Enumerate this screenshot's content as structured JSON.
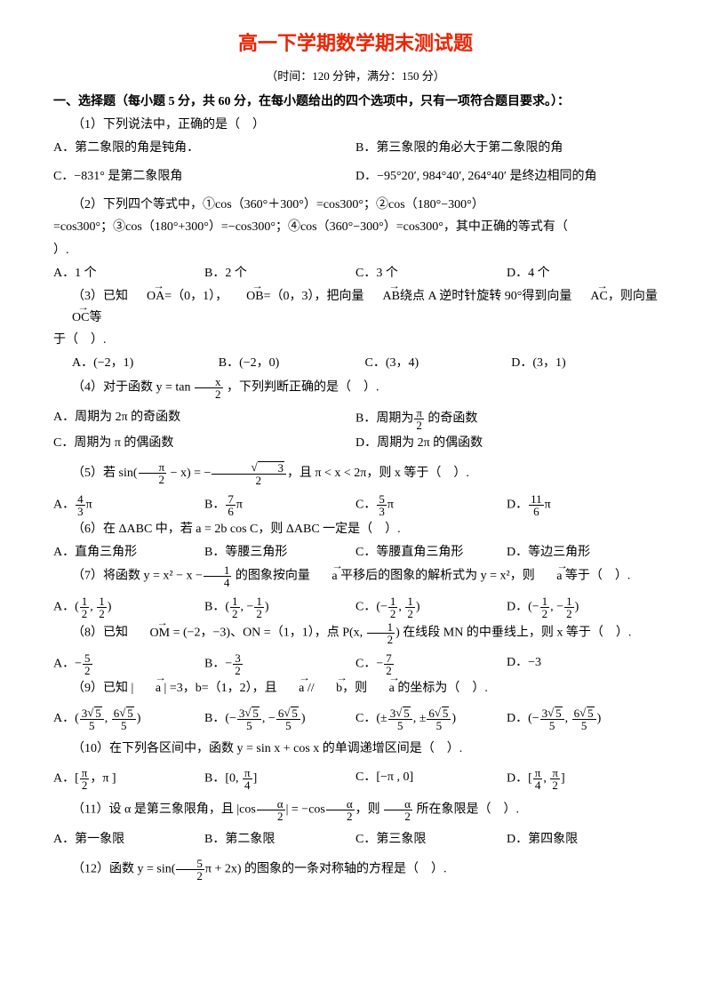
{
  "title": "高一下学期数学期末测试题",
  "subtitle": "（时间：120 分钟，满分：150 分）",
  "section1": "一、选择题（每小题 5 分，共 60 分，在每小题给出的四个选项中，只有一项符合题目要求。）：",
  "q1": {
    "stem": "（1）下列说法中，正确的是（　）",
    "A": "A．第二象限的角是钝角．",
    "B": "B．第三象限的角必大于第二象限的角",
    "C": "C．−831° 是第二象限角",
    "D": "D．−95°20′, 984°40′, 264°40′ 是终边相同的角"
  },
  "q2": {
    "line1": "（2）下列四个等式中，①cos（360°＋300°）=cos300°；②cos（180°−300°）",
    "line2": "=cos300°；③cos（180°+300°）=−cos300°；④cos（360°−300°）=cos300°，其中正确的等式有（",
    "line3": "）.",
    "A": "A．1 个",
    "B": "B．2 个",
    "C": "C．3 个",
    "D": "D．4 个"
  },
  "q3": {
    "p1a": "（3）已知",
    "p1b": "OA",
    "p1c": "=（0，1），",
    "p1d": "OB",
    "p1e": "=（0，3），把向量",
    "p1f": "AB",
    "p1g": "绕点 A 逆时针旋转 90°得到向量",
    "p1h": "AC",
    "p1i": "，则向量",
    "p1j": "OC",
    "p1k": "等",
    "p2": "于（　）.",
    "A": "A．(−2，1)",
    "B": "B．(−2，0)",
    "C": "C．(3，4)",
    "D": "D．(3，1)"
  },
  "q4": {
    "p1": "（4）对于函数 y = tan",
    "p2": "，下列判断正确的是（　）.",
    "A": "A．周期为 2π 的奇函数",
    "Bp": "B．周期为",
    "Bs": " 的奇函数",
    "C": "C．周期为 π 的偶函数",
    "D": "D．周期为 2π 的偶函数"
  },
  "q5": {
    "p1": "（5）若 sin(",
    "p2": " − x) = −",
    "p3": "，且 π < x < 2π，则 x 等于（　）.",
    "Ap": "A．",
    "An": "4",
    "Ad": "3",
    "As": "π",
    "Bp": "B．",
    "Bn": "7",
    "Bd": "6",
    "Bs": "π",
    "Cp": "C．",
    "Cn": "5",
    "Cd": "3",
    "Cs": "π",
    "Dp": "D．",
    "Dn": "11",
    "Dd": "6",
    "Ds": "π"
  },
  "q6": {
    "stem": "（6）在 ΔABC 中，若 a = 2b cos C，则 ΔABC 一定是（　）.",
    "A": "A．直角三角形",
    "B": "B．等腰三角形",
    "C": "C．等腰直角三角形",
    "D": "D．等边三角形"
  },
  "q7": {
    "p1": "（7）将函数 y = x² − x −",
    "p2": " 的图象按向量 ",
    "p3": " 平移后的图象的解析式为 y = x²，则 ",
    "p4": " 等于（　）.",
    "vec": "a",
    "A": "A．(",
    "B": "B．(",
    "C": "C．(−",
    "D": "D．(−",
    "n1": "1",
    "d1": "2",
    "n2": "1",
    "d2": "2",
    "c1": ", ",
    "c2": ")",
    "c3": ", −",
    "c4": ", "
  },
  "q8": {
    "p1": "（8）已知 ",
    "p2": "OM",
    "p3": " = (−2，−3)、ON =（1，1），点 P(x, ",
    "p4": ") 在线段 MN 的中垂线上，则 x 等于（　）.",
    "Ap": "A．−",
    "An": "5",
    "Ad": "2",
    "Bp": "B．−",
    "Bn": "3",
    "Bd": "2",
    "Cp": "C．−",
    "Cn": "7",
    "Cd": "2",
    "D": "D．−3"
  },
  "q9": {
    "p1": "（9）已知 | ",
    "p2": " | =3，b=（1，2），且 ",
    "p3": " // ",
    "p4": "，则 ",
    "p5": " 的坐标为（　）.",
    "vec": "a",
    "vecb": "b",
    "Ap": "A．(",
    "Bp": "B．(−",
    "Cp": "C．(±",
    "Dp": "D．(−",
    "n1": "3",
    "d1": "5",
    "n2": "6",
    "d2": "5",
    "rt": "5",
    "c1": ", ",
    "c2": ")",
    "c3": ", −",
    "c4": ", ±"
  },
  "q10": {
    "stem": "（10）在下列各区间中，函数 y = sin x + cos x 的单调递增区间是（　）.",
    "Ap": "A．[",
    "A2": "，π ]",
    "Bp": "B．[0, ",
    "B2": "]",
    "C": "C．[−π , 0]",
    "Dp": "D．[",
    "D2": ", ",
    "D3": "]"
  },
  "q11": {
    "p1": "（11）设 α 是第三象限角，且 |cos",
    "p2": "| = −cos",
    "p3": "，则 ",
    "p4": " 所在象限是（　）.",
    "A": "A．第一象限",
    "B": "B．第二象限",
    "C": "C．第三象限",
    "D": "D．第四象限"
  },
  "q12": {
    "p1": "（12）函数 y = sin(",
    "p2": "π + 2x) 的图象的一条对称轴的方程是（　）."
  },
  "frac": {
    "x": "x",
    "two": "2",
    "pi": "π",
    "sqrt3": "3",
    "one": "1",
    "alpha": "α",
    "five": "5",
    "four": "4"
  }
}
